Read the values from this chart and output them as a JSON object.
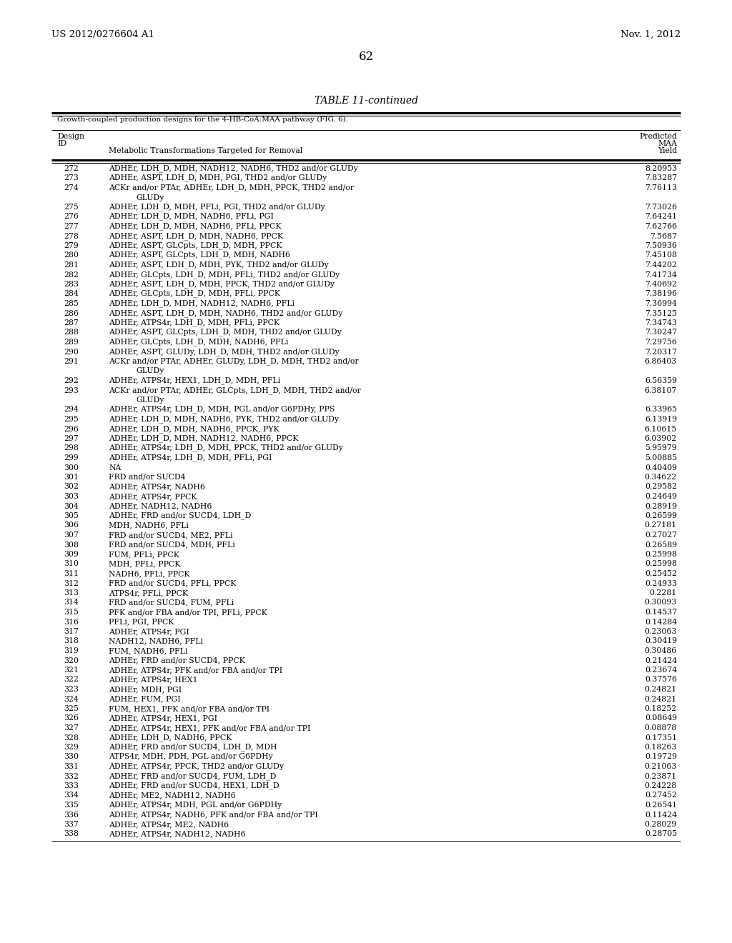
{
  "patent_number": "US 2012/0276604 A1",
  "date": "Nov. 1, 2012",
  "page_number": "62",
  "table_title": "TABLE 11-continued",
  "table_subtitle": "Growth-coupled production designs for the 4-HB-CoA:MAA pathway (FIG. 6).",
  "rows": [
    [
      "272",
      "ADHEr, LDH_D, MDH, NADH12, NADH6, THD2 and/or GLUDy",
      "8.20953"
    ],
    [
      "273",
      "ADHEr, ASPT, LDH_D, MDH, PGI, THD2 and/or GLUDy",
      "7.83287"
    ],
    [
      "274",
      "ACKr and/or PTAr, ADHEr, LDH_D, MDH, PPCK, THD2 and/or",
      "7.76113",
      "GLUDy"
    ],
    [
      "275",
      "ADHEr, LDH_D, MDH, PFLi, PGI, THD2 and/or GLUDy",
      "7.73026"
    ],
    [
      "276",
      "ADHEr, LDH_D, MDH, NADH6, PFLi, PGI",
      "7.64241"
    ],
    [
      "277",
      "ADHEr, LDH_D, MDH, NADH6, PFLi, PPCK",
      "7.62766"
    ],
    [
      "278",
      "ADHEr, ASPT, LDH_D, MDH, NADH6, PPCK",
      "7.5687"
    ],
    [
      "279",
      "ADHEr, ASPT, GLCpts, LDH_D, MDH, PPCK",
      "7.50936"
    ],
    [
      "280",
      "ADHEr, ASPT, GLCpts, LDH_D, MDH, NADH6",
      "7.45108"
    ],
    [
      "281",
      "ADHEr, ASPT, LDH_D, MDH, PYK, THD2 and/or GLUDy",
      "7.44202"
    ],
    [
      "282",
      "ADHEr, GLCpts, LDH_D, MDH, PFLi, THD2 and/or GLUDy",
      "7.41734"
    ],
    [
      "283",
      "ADHEr, ASPT, LDH_D, MDH, PPCK, THD2 and/or GLUDy",
      "7.40692"
    ],
    [
      "284",
      "ADHEr, GLCpts, LDH_D, MDH, PFLi, PPCK",
      "7.38196"
    ],
    [
      "285",
      "ADHEr, LDH_D, MDH, NADH12, NADH6, PFLi",
      "7.36994"
    ],
    [
      "286",
      "ADHEr, ASPT, LDH_D, MDH, NADH6, THD2 and/or GLUDy",
      "7.35125"
    ],
    [
      "287",
      "ADHEr, ATPS4r, LDH_D, MDH, PFLi, PPCK",
      "7.34743"
    ],
    [
      "288",
      "ADHEr, ASPT, GLCpts, LDH_D, MDH, THD2 and/or GLUDy",
      "7.30247"
    ],
    [
      "289",
      "ADHEr, GLCpts, LDH_D, MDH, NADH6, PFLi",
      "7.29756"
    ],
    [
      "290",
      "ADHEr, ASPT, GLUDy, LDH_D, MDH, THD2 and/or GLUDy",
      "7.20317"
    ],
    [
      "291",
      "ACKr and/or PTAr, ADHEr, GLUDy, LDH_D, MDH, THD2 and/or",
      "6.86403",
      "GLUDy"
    ],
    [
      "292",
      "ADHEr, ATPS4r, HEX1, LDH_D, MDH, PFLi",
      "6.56359"
    ],
    [
      "293",
      "ACKr and/or PTAr, ADHEr, GLCpts, LDH_D, MDH, THD2 and/or",
      "6.38107",
      "GLUDy"
    ],
    [
      "294",
      "ADHEr, ATPS4r, LDH_D, MDH, PGL and/or G6PDHy, PPS",
      "6.33965"
    ],
    [
      "295",
      "ADHEr, LDH_D, MDH, NADH6, PYK, THD2 and/or GLUDy",
      "6.13919"
    ],
    [
      "296",
      "ADHEr, LDH_D, MDH, NADH6, PPCK, PYK",
      "6.10615"
    ],
    [
      "297",
      "ADHEr, LDH_D, MDH, NADH12, NADH6, PPCK",
      "6.03902"
    ],
    [
      "298",
      "ADHEr, ATPS4r, LDH_D, MDH, PPCK, THD2 and/or GLUDy",
      "5.95979"
    ],
    [
      "299",
      "ADHEr, ATPS4r, LDH_D, MDH, PFLi, PGI",
      "5.00885"
    ],
    [
      "300",
      "NA",
      "0.40409"
    ],
    [
      "301",
      "FRD and/or SUCD4",
      "0.34622"
    ],
    [
      "302",
      "ADHEr, ATPS4r, NADH6",
      "0.29582"
    ],
    [
      "303",
      "ADHEr, ATPS4r, PPCK",
      "0.24649"
    ],
    [
      "304",
      "ADHEr, NADH12, NADH6",
      "0.28919"
    ],
    [
      "305",
      "ADHEr, FRD and/or SUCD4, LDH_D",
      "0.26599"
    ],
    [
      "306",
      "MDH, NADH6, PFLi",
      "0.27181"
    ],
    [
      "307",
      "FRD and/or SUCD4, ME2, PFLi",
      "0.27027"
    ],
    [
      "308",
      "FRD and/or SUCD4, MDH, PFLi",
      "0.26589"
    ],
    [
      "309",
      "FUM, PFLi, PPCK",
      "0.25998"
    ],
    [
      "310",
      "MDH, PFLi, PPCK",
      "0.25998"
    ],
    [
      "311",
      "NADH6, PFLi, PPCK",
      "0.25452"
    ],
    [
      "312",
      "FRD and/or SUCD4, PFLi, PPCK",
      "0.24933"
    ],
    [
      "313",
      "ATPS4r, PFLi, PPCK",
      "0.2281"
    ],
    [
      "314",
      "FRD and/or SUCD4, FUM, PFLi",
      "0.30093"
    ],
    [
      "315",
      "PFK and/or FBA and/or TPI, PFLi, PPCK",
      "0.14537"
    ],
    [
      "316",
      "PFLi, PGI, PPCK",
      "0.14284"
    ],
    [
      "317",
      "ADHEr, ATPS4r, PGI",
      "0.23063"
    ],
    [
      "318",
      "NADH12, NADH6, PFLi",
      "0.30419"
    ],
    [
      "319",
      "FUM, NADH6, PFLi",
      "0.30486"
    ],
    [
      "320",
      "ADHEr, FRD and/or SUCD4, PPCK",
      "0.21424"
    ],
    [
      "321",
      "ADHEr, ATPS4r, PFK and/or FBA and/or TPI",
      "0.23674"
    ],
    [
      "322",
      "ADHEr, ATPS4r, HEX1",
      "0.37576"
    ],
    [
      "323",
      "ADHEr, MDH, PGI",
      "0.24821"
    ],
    [
      "324",
      "ADHEr, FUM, PGI",
      "0.24821"
    ],
    [
      "325",
      "FUM, HEX1, PFK and/or FBA and/or TPI",
      "0.18252"
    ],
    [
      "326",
      "ADHEr, ATPS4r, HEX1, PGI",
      "0.08649"
    ],
    [
      "327",
      "ADHEr, ATPS4r, HEX1, PFK and/or FBA and/or TPI",
      "0.08878"
    ],
    [
      "328",
      "ADHEr, LDH_D, NADH6, PPCK",
      "0.17351"
    ],
    [
      "329",
      "ADHEr, FRD and/or SUCD4, LDH_D, MDH",
      "0.18263"
    ],
    [
      "330",
      "ATPS4r, MDH, PDH, PGL and/or G6PDHy",
      "0.19729"
    ],
    [
      "331",
      "ADHEr, ATPS4r, PPCK, THD2 and/or GLUDy",
      "0.21063"
    ],
    [
      "332",
      "ADHEr, FRD and/or SUCD4, FUM, LDH_D",
      "0.23871"
    ],
    [
      "333",
      "ADHEr, FRD and/or SUCD4, HEX1, LDH_D",
      "0.24228"
    ],
    [
      "334",
      "ADHEr, ME2, NADH12, NADH6",
      "0.27452"
    ],
    [
      "335",
      "ADHEr, ATPS4r, MDH, PGL and/or G6PDHy",
      "0.26541"
    ],
    [
      "336",
      "ADHEr, ATPS4r, NADH6, PFK and/or FBA and/or TPI",
      "0.11424"
    ],
    [
      "337",
      "ADHEr, ATPS4r, ME2, NADH6",
      "0.28029"
    ],
    [
      "338",
      "ADHEr, ATPS4r, NADH12, NADH6",
      "0.28705"
    ]
  ]
}
